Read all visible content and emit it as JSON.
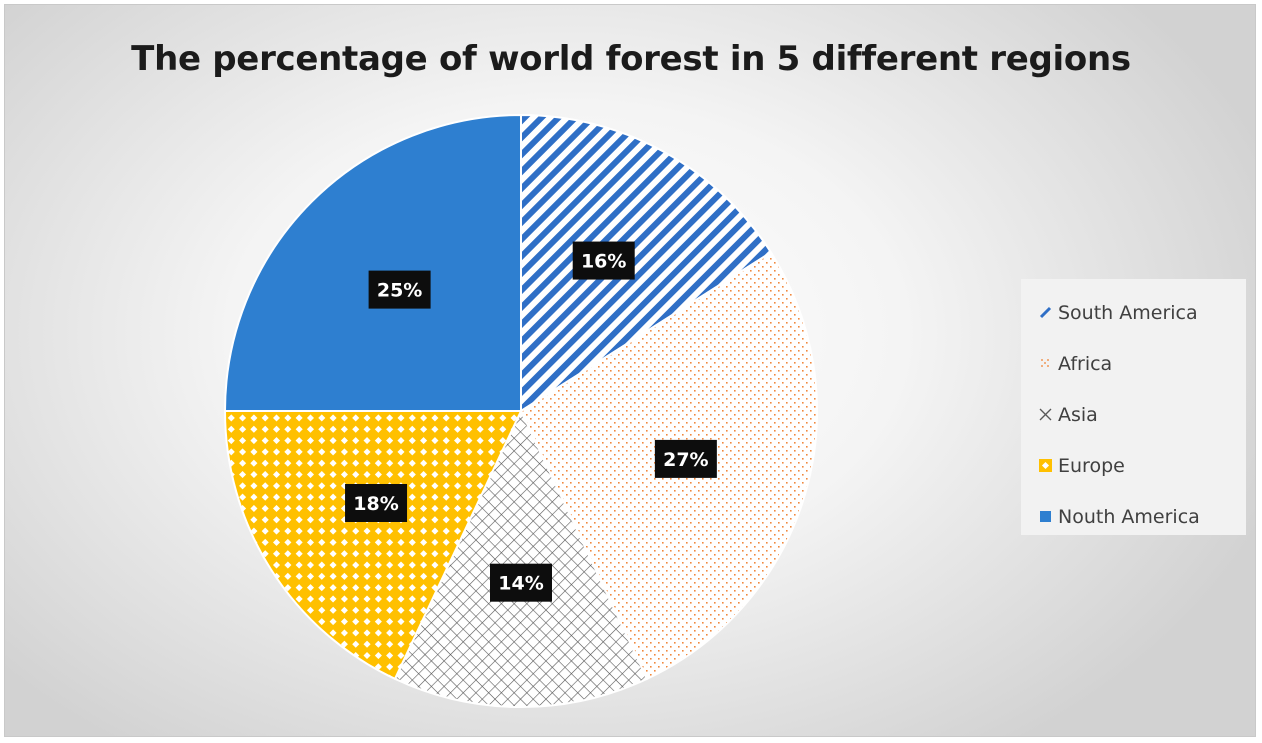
{
  "chart_data": {
    "type": "pie",
    "title": "The percentage of world forest in 5 different regions",
    "categories": [
      "South America",
      "Africa",
      "Asia",
      "Europe",
      "Nouth America"
    ],
    "values": [
      16,
      27,
      14,
      18,
      25
    ],
    "data_labels": [
      "16%",
      "27%",
      "14%",
      "18%",
      "25%"
    ],
    "unit": "%",
    "start_angle_deg": 0,
    "direction": "clockwise",
    "legend_position": "right",
    "slice_styles": [
      {
        "pattern": "diagonal-stripes",
        "color": "#2f6fc6"
      },
      {
        "pattern": "dots",
        "color": "#f0883e"
      },
      {
        "pattern": "crosshatch",
        "color": "#595959"
      },
      {
        "pattern": "diamond-checker",
        "color": "#ffc000"
      },
      {
        "pattern": "solid",
        "color": "#2e7fd0"
      }
    ],
    "label_box_color": "#0d0d0d",
    "label_text_color": "#ffffff"
  }
}
